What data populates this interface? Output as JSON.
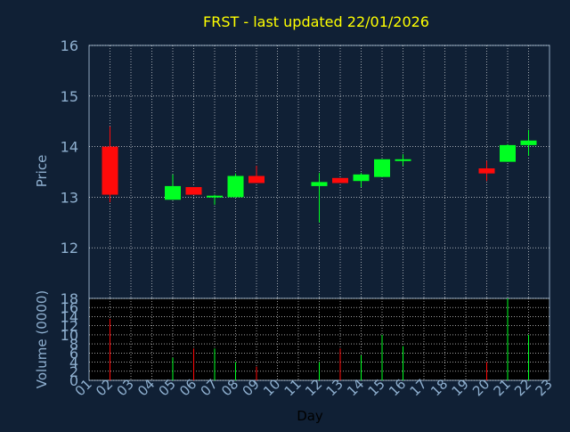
{
  "chart_data": [
    {
      "type": "candlestick",
      "title": "FRST - last updated 22/01/2026",
      "ylabel": "Price",
      "ylim": [
        11,
        16
      ],
      "yticks": [
        "12",
        "13",
        "14",
        "15",
        "16"
      ],
      "grid": true,
      "colors": {
        "up": "#00ff22",
        "down": "#ff0a0a",
        "title": "#ffff00",
        "axis_text": "#8fb0d0",
        "grid": "#ffffff"
      },
      "x": [
        "01",
        "02",
        "03",
        "04",
        "05",
        "06",
        "07",
        "08",
        "09",
        "10",
        "11",
        "12",
        "13",
        "14",
        "15",
        "16",
        "17",
        "18",
        "19",
        "20",
        "21",
        "22",
        "23"
      ],
      "candles": [
        {
          "day": "02",
          "open": 14.0,
          "high": 14.4,
          "low": 12.9,
          "close": 13.05
        },
        {
          "day": "05",
          "open": 12.95,
          "high": 13.45,
          "low": 12.95,
          "close": 13.22
        },
        {
          "day": "06",
          "open": 13.2,
          "high": 13.2,
          "low": 13.05,
          "close": 13.05
        },
        {
          "day": "07",
          "open": 13.0,
          "high": 13.05,
          "low": 12.85,
          "close": 13.03
        },
        {
          "day": "08",
          "open": 13.0,
          "high": 13.47,
          "low": 13.0,
          "close": 13.42
        },
        {
          "day": "09",
          "open": 13.42,
          "high": 13.62,
          "low": 13.28,
          "close": 13.28
        },
        {
          "day": "12",
          "open": 13.22,
          "high": 13.48,
          "low": 12.5,
          "close": 13.3
        },
        {
          "day": "13",
          "open": 13.38,
          "high": 13.38,
          "low": 13.28,
          "close": 13.28
        },
        {
          "day": "14",
          "open": 13.32,
          "high": 13.48,
          "low": 13.2,
          "close": 13.45
        },
        {
          "day": "15",
          "open": 13.4,
          "high": 13.75,
          "low": 13.4,
          "close": 13.75
        },
        {
          "day": "16",
          "open": 13.72,
          "high": 13.85,
          "low": 13.62,
          "close": 13.75
        },
        {
          "day": "20",
          "open": 13.57,
          "high": 13.72,
          "low": 13.32,
          "close": 13.47
        },
        {
          "day": "21",
          "open": 13.7,
          "high": 14.05,
          "low": 13.7,
          "close": 14.03
        },
        {
          "day": "22",
          "open": 14.03,
          "high": 14.33,
          "low": 13.82,
          "close": 14.12
        }
      ]
    },
    {
      "type": "bar",
      "ylabel": "Volume (0000)",
      "xlabel": "Day",
      "ylim": [
        0,
        18
      ],
      "yticks": [
        "0",
        "2",
        "4",
        "6",
        "8",
        "10",
        "12",
        "14",
        "16",
        "18"
      ],
      "x": [
        "01",
        "02",
        "03",
        "04",
        "05",
        "06",
        "07",
        "08",
        "09",
        "10",
        "11",
        "12",
        "13",
        "14",
        "15",
        "16",
        "17",
        "18",
        "19",
        "20",
        "21",
        "22",
        "23"
      ],
      "volumes": [
        {
          "day": "02",
          "value": 13.5,
          "direction": "down"
        },
        {
          "day": "05",
          "value": 5,
          "direction": "up"
        },
        {
          "day": "06",
          "value": 7,
          "direction": "down"
        },
        {
          "day": "07",
          "value": 7,
          "direction": "up"
        },
        {
          "day": "08",
          "value": 4,
          "direction": "up"
        },
        {
          "day": "09",
          "value": 3,
          "direction": "down"
        },
        {
          "day": "12",
          "value": 4,
          "direction": "up"
        },
        {
          "day": "13",
          "value": 7,
          "direction": "down"
        },
        {
          "day": "14",
          "value": 5.5,
          "direction": "up"
        },
        {
          "day": "15",
          "value": 10,
          "direction": "up"
        },
        {
          "day": "16",
          "value": 7.5,
          "direction": "up"
        },
        {
          "day": "20",
          "value": 4,
          "direction": "down"
        },
        {
          "day": "21",
          "value": 18,
          "direction": "up"
        },
        {
          "day": "22",
          "value": 10,
          "direction": "up"
        }
      ]
    }
  ]
}
